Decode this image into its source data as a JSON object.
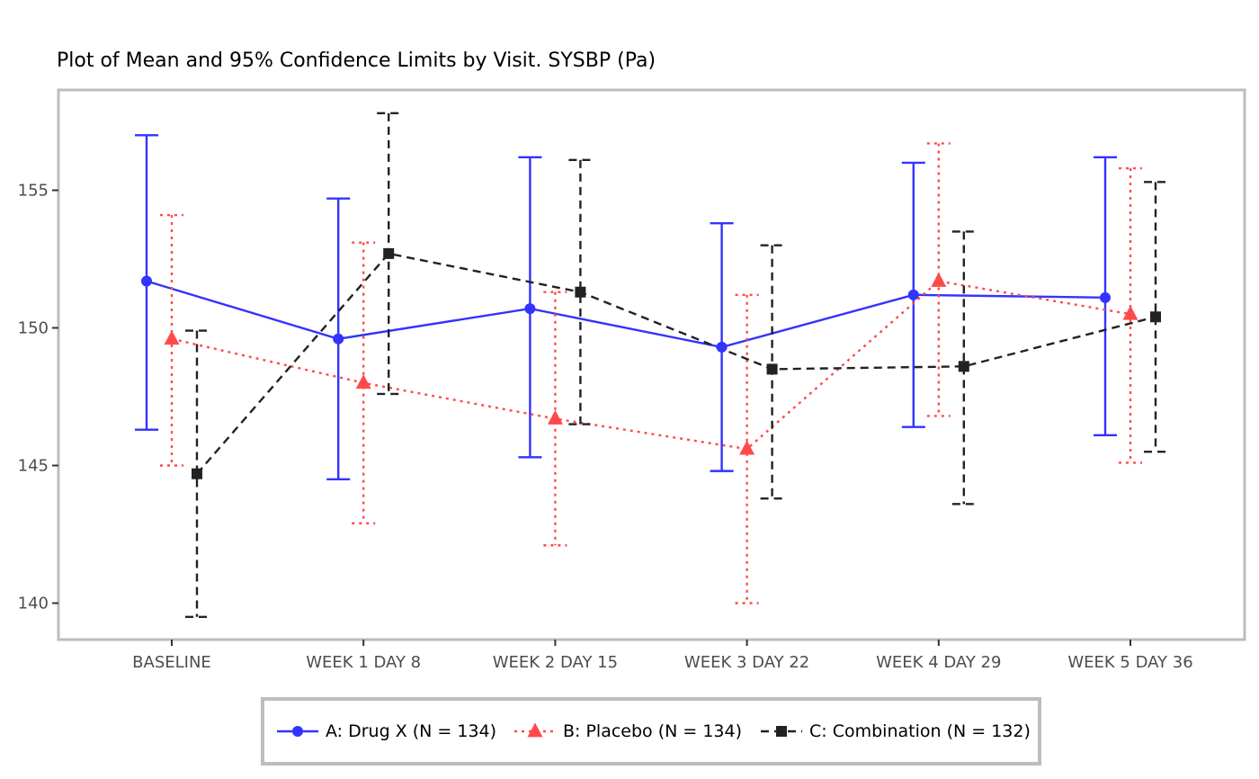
{
  "chart_data": {
    "type": "line",
    "title": "Plot of Mean and 95% Confidence Limits by Visit. SYSBP (Pa)",
    "xlabel": "",
    "ylabel": "",
    "categories": [
      "BASELINE",
      "WEEK 1 DAY 8",
      "WEEK 2 DAY 15",
      "WEEK 3 DAY 22",
      "WEEK 4 DAY 29",
      "WEEK 5 DAY 36"
    ],
    "ylim": [
      138.7,
      158.5
    ],
    "yticks": [
      140,
      145,
      150,
      155
    ],
    "grid": false,
    "legend_position": "bottom",
    "series": [
      {
        "name": "A: Drug X (N = 134)",
        "color": "#3333ff",
        "marker": "circle",
        "linestyle": "solid",
        "mean": [
          151.7,
          149.6,
          150.7,
          149.3,
          151.2,
          151.1
        ],
        "lower": [
          146.3,
          144.5,
          145.3,
          144.8,
          146.4,
          146.1
        ],
        "upper": [
          157.0,
          154.7,
          156.2,
          153.8,
          156.0,
          156.2
        ]
      },
      {
        "name": "B: Placebo (N = 134)",
        "color": "#ff4a4a",
        "marker": "triangle",
        "linestyle": "dotted",
        "mean": [
          149.6,
          148.0,
          146.7,
          145.6,
          151.7,
          150.5
        ],
        "lower": [
          145.0,
          142.9,
          142.1,
          140.0,
          146.8,
          145.1
        ],
        "upper": [
          154.1,
          153.1,
          151.3,
          151.2,
          156.7,
          155.8
        ]
      },
      {
        "name": "C: Combination (N = 132)",
        "color": "#222222",
        "marker": "square",
        "linestyle": "dashed",
        "mean": [
          144.7,
          152.7,
          151.3,
          148.5,
          148.6,
          150.4
        ],
        "lower": [
          139.5,
          147.6,
          146.5,
          143.8,
          143.6,
          145.5
        ],
        "upper": [
          149.9,
          157.8,
          156.1,
          153.0,
          153.5,
          155.3
        ]
      }
    ]
  }
}
